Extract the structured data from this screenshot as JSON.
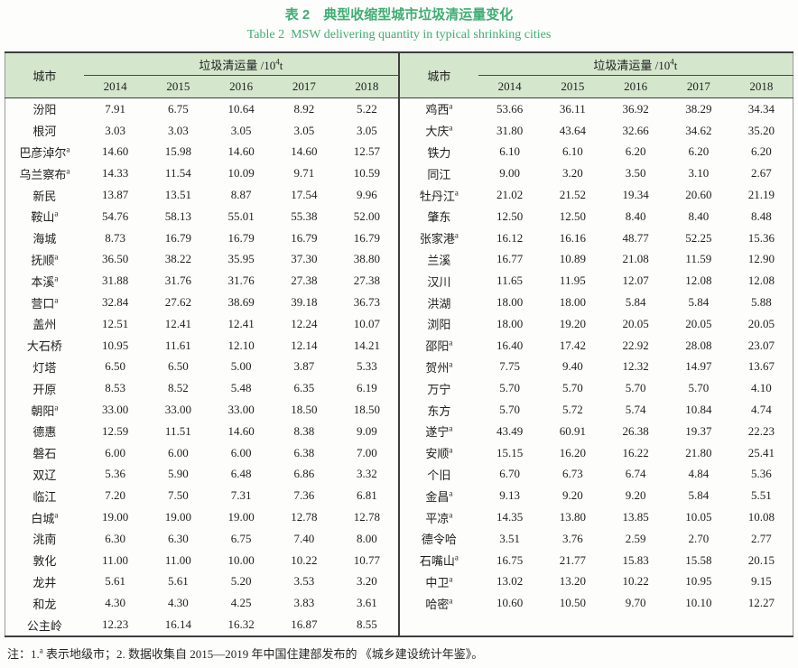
{
  "colors": {
    "title_green": "#3fae72",
    "header_bg": "#d4e6cc",
    "rule_dark": "#3d3d3d",
    "rule_light": "#9a9a9a"
  },
  "title": {
    "zh": "表 2　典型收缩型城市垃圾清运量变化",
    "en": "Table 2  MSW delivering quantity in typical shrinking cities"
  },
  "header": {
    "city_label": "城市",
    "quantity_label_prefix": "垃圾清运量 /10",
    "quantity_label_sup": "4",
    "quantity_label_suffix": "t",
    "years": [
      "2014",
      "2015",
      "2016",
      "2017",
      "2018"
    ]
  },
  "tables": [
    {
      "rows": [
        {
          "city": "汾阳",
          "marker": "",
          "values": [
            "7.91",
            "6.75",
            "10.64",
            "8.92",
            "5.22"
          ]
        },
        {
          "city": "根河",
          "marker": "",
          "values": [
            "3.03",
            "3.03",
            "3.05",
            "3.05",
            "3.05"
          ]
        },
        {
          "city": "巴彦淖尔",
          "marker": "a",
          "values": [
            "14.60",
            "15.98",
            "14.60",
            "14.60",
            "12.57"
          ]
        },
        {
          "city": "乌兰察布",
          "marker": "a",
          "values": [
            "14.33",
            "11.54",
            "10.09",
            "9.71",
            "10.59"
          ]
        },
        {
          "city": "新民",
          "marker": "",
          "values": [
            "13.87",
            "13.51",
            "8.87",
            "17.54",
            "9.96"
          ]
        },
        {
          "city": "鞍山",
          "marker": "a",
          "values": [
            "54.76",
            "58.13",
            "55.01",
            "55.38",
            "52.00"
          ]
        },
        {
          "city": "海城",
          "marker": "",
          "values": [
            "8.73",
            "16.79",
            "16.79",
            "16.79",
            "16.79"
          ]
        },
        {
          "city": "抚顺",
          "marker": "a",
          "values": [
            "36.50",
            "38.22",
            "35.95",
            "37.30",
            "38.80"
          ]
        },
        {
          "city": "本溪",
          "marker": "a",
          "values": [
            "31.88",
            "31.76",
            "31.76",
            "27.38",
            "27.38"
          ]
        },
        {
          "city": "营口",
          "marker": "a",
          "values": [
            "32.84",
            "27.62",
            "38.69",
            "39.18",
            "36.73"
          ]
        },
        {
          "city": "盖州",
          "marker": "",
          "values": [
            "12.51",
            "12.41",
            "12.41",
            "12.24",
            "10.07"
          ]
        },
        {
          "city": "大石桥",
          "marker": "",
          "values": [
            "10.95",
            "11.61",
            "12.10",
            "12.14",
            "14.21"
          ]
        },
        {
          "city": "灯塔",
          "marker": "",
          "values": [
            "6.50",
            "6.50",
            "5.00",
            "3.87",
            "5.33"
          ]
        },
        {
          "city": "开原",
          "marker": "",
          "values": [
            "8.53",
            "8.52",
            "5.48",
            "6.35",
            "6.19"
          ]
        },
        {
          "city": "朝阳",
          "marker": "a",
          "values": [
            "33.00",
            "33.00",
            "33.00",
            "18.50",
            "18.50"
          ]
        },
        {
          "city": "德惠",
          "marker": "",
          "values": [
            "12.59",
            "11.51",
            "14.60",
            "8.38",
            "9.09"
          ]
        },
        {
          "city": "磐石",
          "marker": "",
          "values": [
            "6.00",
            "6.00",
            "6.00",
            "6.38",
            "7.00"
          ]
        },
        {
          "city": "双辽",
          "marker": "",
          "values": [
            "5.36",
            "5.90",
            "6.48",
            "6.86",
            "3.32"
          ]
        },
        {
          "city": "临江",
          "marker": "",
          "values": [
            "7.20",
            "7.50",
            "7.31",
            "7.36",
            "6.81"
          ]
        },
        {
          "city": "白城",
          "marker": "a",
          "values": [
            "19.00",
            "19.00",
            "19.00",
            "12.78",
            "12.78"
          ]
        },
        {
          "city": "洮南",
          "marker": "",
          "values": [
            "6.30",
            "6.30",
            "6.75",
            "7.40",
            "8.00"
          ]
        },
        {
          "city": "敦化",
          "marker": "",
          "values": [
            "11.00",
            "11.00",
            "10.00",
            "10.22",
            "10.77"
          ]
        },
        {
          "city": "龙井",
          "marker": "",
          "values": [
            "5.61",
            "5.61",
            "5.20",
            "3.53",
            "3.20"
          ]
        },
        {
          "city": "和龙",
          "marker": "",
          "values": [
            "4.30",
            "4.30",
            "4.25",
            "3.83",
            "3.61"
          ]
        },
        {
          "city": "公主岭",
          "marker": "",
          "values": [
            "12.23",
            "16.14",
            "16.32",
            "16.87",
            "8.55"
          ]
        }
      ]
    },
    {
      "rows": [
        {
          "city": "鸡西",
          "marker": "a",
          "values": [
            "53.66",
            "36.11",
            "36.92",
            "38.29",
            "34.34"
          ]
        },
        {
          "city": "大庆",
          "marker": "a",
          "values": [
            "31.80",
            "43.64",
            "32.66",
            "34.62",
            "35.20"
          ]
        },
        {
          "city": "铁力",
          "marker": "",
          "values": [
            "6.10",
            "6.10",
            "6.20",
            "6.20",
            "6.20"
          ]
        },
        {
          "city": "同江",
          "marker": "",
          "values": [
            "9.00",
            "3.20",
            "3.50",
            "3.10",
            "2.67"
          ]
        },
        {
          "city": "牡丹江",
          "marker": "a",
          "values": [
            "21.02",
            "21.52",
            "19.34",
            "20.60",
            "21.19"
          ]
        },
        {
          "city": "肇东",
          "marker": "",
          "values": [
            "12.50",
            "12.50",
            "8.40",
            "8.40",
            "8.48"
          ]
        },
        {
          "city": "张家港",
          "marker": "a",
          "values": [
            "16.12",
            "16.16",
            "48.77",
            "52.25",
            "15.36"
          ]
        },
        {
          "city": "兰溪",
          "marker": "",
          "values": [
            "16.77",
            "10.89",
            "21.08",
            "11.59",
            "12.90"
          ]
        },
        {
          "city": "汉川",
          "marker": "",
          "values": [
            "11.65",
            "11.95",
            "12.07",
            "12.08",
            "12.08"
          ]
        },
        {
          "city": "洪湖",
          "marker": "",
          "values": [
            "18.00",
            "18.00",
            "5.84",
            "5.84",
            "5.88"
          ]
        },
        {
          "city": "浏阳",
          "marker": "",
          "values": [
            "18.00",
            "19.20",
            "20.05",
            "20.05",
            "20.05"
          ]
        },
        {
          "city": "邵阳",
          "marker": "a",
          "values": [
            "16.40",
            "17.42",
            "22.92",
            "28.08",
            "23.07"
          ]
        },
        {
          "city": "贺州",
          "marker": "a",
          "values": [
            "7.75",
            "9.40",
            "12.32",
            "14.97",
            "13.67"
          ]
        },
        {
          "city": "万宁",
          "marker": "",
          "values": [
            "5.70",
            "5.70",
            "5.70",
            "5.70",
            "4.10"
          ]
        },
        {
          "city": "东方",
          "marker": "",
          "values": [
            "5.70",
            "5.72",
            "5.74",
            "10.84",
            "4.74"
          ]
        },
        {
          "city": "遂宁",
          "marker": "a",
          "values": [
            "43.49",
            "60.91",
            "26.38",
            "19.37",
            "22.23"
          ]
        },
        {
          "city": "安顺",
          "marker": "a",
          "values": [
            "15.15",
            "16.20",
            "16.22",
            "21.80",
            "25.41"
          ]
        },
        {
          "city": "个旧",
          "marker": "",
          "values": [
            "6.70",
            "6.73",
            "6.74",
            "4.84",
            "5.36"
          ]
        },
        {
          "city": "金昌",
          "marker": "a",
          "values": [
            "9.13",
            "9.20",
            "9.20",
            "5.84",
            "5.51"
          ]
        },
        {
          "city": "平凉",
          "marker": "a",
          "values": [
            "14.35",
            "13.80",
            "13.85",
            "10.05",
            "10.08"
          ]
        },
        {
          "city": "德令哈",
          "marker": "",
          "values": [
            "3.51",
            "3.76",
            "2.59",
            "2.70",
            "2.77"
          ]
        },
        {
          "city": "石嘴山",
          "marker": "a",
          "values": [
            "16.75",
            "21.77",
            "15.83",
            "15.58",
            "20.15"
          ]
        },
        {
          "city": "中卫",
          "marker": "a",
          "values": [
            "13.02",
            "13.20",
            "10.22",
            "10.95",
            "9.15"
          ]
        },
        {
          "city": "哈密",
          "marker": "a",
          "values": [
            "10.60",
            "10.50",
            "9.70",
            "10.10",
            "12.27"
          ]
        }
      ]
    }
  ],
  "note": {
    "prefix": "注：1.",
    "sup": "a",
    "text": " 表示地级市；2. 数据收集自 2015—2019 年中国住建部发布的 《城乡建设统计年鉴》。"
  }
}
